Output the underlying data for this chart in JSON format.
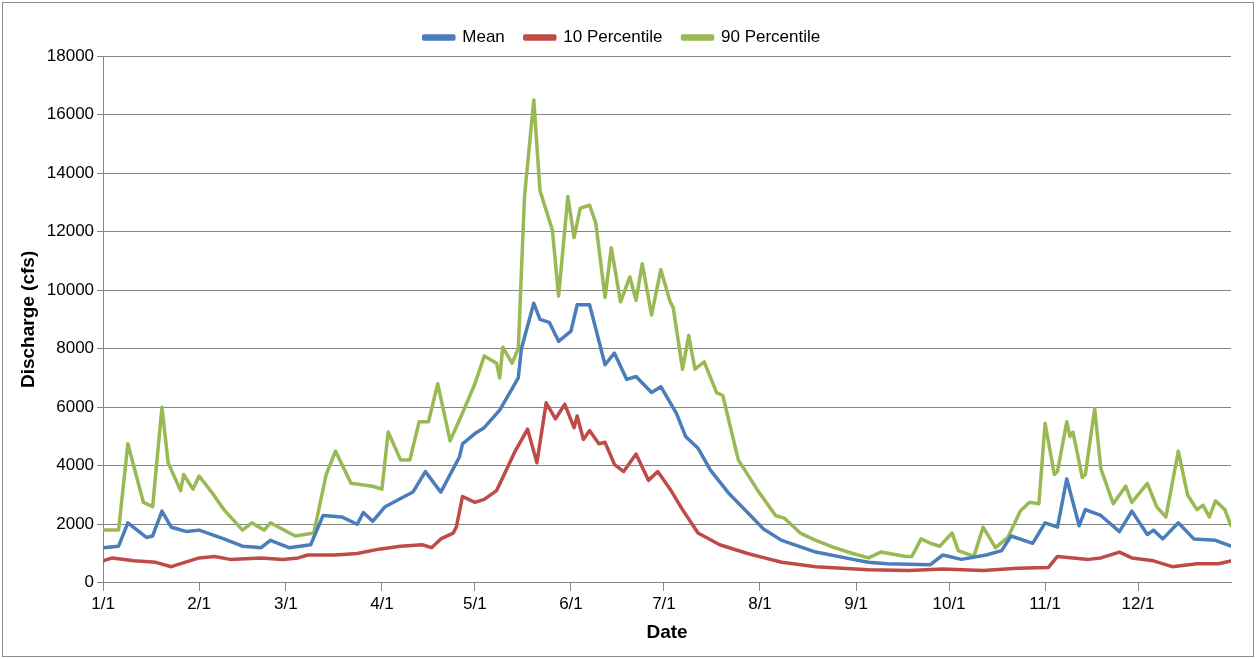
{
  "chart_data": {
    "type": "line",
    "xlabel": "Date",
    "ylabel": "Discharge (cfs)",
    "legend": "top",
    "grid": "y",
    "marker": "none",
    "line_style": "solid",
    "xlim": [
      "--01-01",
      "--12-31"
    ],
    "xticks": [
      {
        "value": "--01-01",
        "label": "1/1"
      },
      {
        "value": "--02-01",
        "label": "2/1"
      },
      {
        "value": "--03-01",
        "label": "3/1"
      },
      {
        "value": "--04-01",
        "label": "4/1"
      },
      {
        "value": "--05-01",
        "label": "5/1"
      },
      {
        "value": "--06-01",
        "label": "6/1"
      },
      {
        "value": "--07-01",
        "label": "7/1"
      },
      {
        "value": "--08-01",
        "label": "8/1"
      },
      {
        "value": "--09-01",
        "label": "9/1"
      },
      {
        "value": "--10-01",
        "label": "10/1"
      },
      {
        "value": "--11-01",
        "label": "11/1"
      },
      {
        "value": "--12-01",
        "label": "12/1"
      }
    ],
    "ylim": [
      0,
      18000
    ],
    "yticks": [
      0,
      2000,
      4000,
      6000,
      8000,
      10000,
      12000,
      14000,
      16000,
      18000
    ],
    "series": [
      {
        "name": "Mean",
        "color": "#4a7ebb",
        "x": [
          "--01-01",
          "--01-06",
          "--01-09",
          "--01-15",
          "--01-17",
          "--01-20",
          "--01-23",
          "--01-28",
          "--02-01",
          "--02-09",
          "--02-15",
          "--02-21",
          "--02-24",
          "--03-02",
          "--03-09",
          "--03-13",
          "--03-19",
          "--03-24",
          "--03-26",
          "--03-29",
          "--04-02",
          "--04-11",
          "--04-15",
          "--04-20",
          "--04-26",
          "--04-27",
          "--05-01",
          "--05-04",
          "--05-09",
          "--05-15",
          "--05-16",
          "--05-20",
          "--05-22",
          "--05-25",
          "--05-28",
          "--06-01",
          "--06-03",
          "--06-07",
          "--06-12",
          "--06-15",
          "--06-19",
          "--06-22",
          "--06-27",
          "--06-30",
          "--07-05",
          "--07-08",
          "--07-12",
          "--07-16",
          "--07-22",
          "--07-28",
          "--08-02",
          "--08-08",
          "--08-19",
          "--08-31",
          "--09-05",
          "--09-11",
          "--09-25",
          "--09-29",
          "--10-05",
          "--10-13",
          "--10-18",
          "--10-21",
          "--10-28",
          "--11-01",
          "--11-05",
          "--11-08",
          "--11-12",
          "--11-14",
          "--11-19",
          "--11-25",
          "--11-29",
          "--12-04",
          "--12-06",
          "--12-09",
          "--12-14",
          "--12-19",
          "--12-26",
          "--12-31"
        ],
        "values": [
          1200,
          1250,
          2050,
          1550,
          1600,
          2450,
          1900,
          1750,
          1800,
          1500,
          1250,
          1200,
          1450,
          1200,
          1300,
          2300,
          2250,
          2000,
          2400,
          2100,
          2600,
          3100,
          3800,
          3100,
          4300,
          4750,
          5100,
          5300,
          5900,
          7000,
          8000,
          9550,
          9000,
          8900,
          8250,
          8600,
          9500,
          9500,
          7450,
          7850,
          6950,
          7050,
          6500,
          6700,
          5800,
          5000,
          4600,
          3850,
          3050,
          2400,
          1850,
          1450,
          1050,
          800,
          700,
          650,
          620,
          950,
          800,
          950,
          1100,
          1600,
          1350,
          2050,
          1900,
          3550,
          1950,
          2500,
          2300,
          1750,
          2450,
          1650,
          1800,
          1500,
          2050,
          1500,
          1450,
          1250
        ]
      },
      {
        "name": "10 Percentile",
        "color": "#be4b48",
        "x": [
          "--01-01",
          "--01-04",
          "--01-11",
          "--01-18",
          "--01-23",
          "--02-01",
          "--02-06",
          "--02-11",
          "--02-21",
          "--02-28",
          "--03-05",
          "--03-08",
          "--03-17",
          "--03-24",
          "--03-31",
          "--04-07",
          "--04-14",
          "--04-17",
          "--04-20",
          "--04-24",
          "--04-25",
          "--04-27",
          "--05-01",
          "--05-04",
          "--05-08",
          "--05-14",
          "--05-18",
          "--05-21",
          "--05-24",
          "--05-27",
          "--05-30",
          "--06-02",
          "--06-03",
          "--06-05",
          "--06-07",
          "--06-10",
          "--06-12",
          "--06-15",
          "--06-18",
          "--06-22",
          "--06-26",
          "--06-29",
          "--07-03",
          "--07-07",
          "--07-12",
          "--07-19",
          "--07-28",
          "--08-08",
          "--08-19",
          "--09-05",
          "--09-18",
          "--09-29",
          "--10-12",
          "--10-23",
          "--11-02",
          "--11-05",
          "--11-10",
          "--11-15",
          "--11-19",
          "--11-25",
          "--11-29",
          "--12-06",
          "--12-12",
          "--12-20",
          "--12-27",
          "--12-31"
        ],
        "values": [
          750,
          850,
          750,
          700,
          550,
          850,
          900,
          800,
          850,
          800,
          850,
          950,
          950,
          1000,
          1150,
          1250,
          1300,
          1200,
          1500,
          1700,
          1900,
          2950,
          2750,
          2850,
          3150,
          4500,
          5250,
          4100,
          6150,
          5600,
          6100,
          5300,
          5700,
          4900,
          5200,
          4750,
          4800,
          4050,
          3800,
          4400,
          3500,
          3800,
          3200,
          2500,
          1700,
          1300,
          1000,
          700,
          550,
          450,
          420,
          470,
          420,
          500,
          520,
          900,
          850,
          800,
          850,
          1050,
          850,
          750,
          550,
          650,
          650,
          750
        ]
      },
      {
        "name": "90 Percentile",
        "color": "#98b954",
        "x": [
          "--01-01",
          "--01-06",
          "--01-09",
          "--01-14",
          "--01-17",
          "--01-20",
          "--01-22",
          "--01-26",
          "--01-27",
          "--01-30",
          "--02-01",
          "--02-05",
          "--02-09",
          "--02-15",
          "--02-18",
          "--02-22",
          "--02-24",
          "--03-04",
          "--03-10",
          "--03-14",
          "--03-17",
          "--03-22",
          "--03-29",
          "--04-01",
          "--04-03",
          "--04-07",
          "--04-10",
          "--04-13",
          "--04-16",
          "--04-19",
          "--04-23",
          "--04-27",
          "--05-01",
          "--05-04",
          "--05-08",
          "--05-09",
          "--05-10",
          "--05-13",
          "--05-15",
          "--05-17",
          "--05-20",
          "--05-22",
          "--05-26",
          "--05-28",
          "--05-31",
          "--06-02",
          "--06-04",
          "--06-07",
          "--06-09",
          "--06-12",
          "--06-14",
          "--06-17",
          "--06-20",
          "--06-22",
          "--06-24",
          "--06-27",
          "--06-30",
          "--07-03",
          "--07-04",
          "--07-07",
          "--07-09",
          "--07-11",
          "--07-14",
          "--07-18",
          "--07-20",
          "--07-25",
          "--07-31",
          "--08-06",
          "--08-09",
          "--08-14",
          "--08-19",
          "--08-25",
          "--08-31",
          "--09-05",
          "--09-09",
          "--09-17",
          "--09-19",
          "--09-22",
          "--09-25",
          "--09-28",
          "--10-02",
          "--10-04",
          "--10-09",
          "--10-12",
          "--10-16",
          "--10-20",
          "--10-24",
          "--10-27",
          "--10-30",
          "--11-01",
          "--11-04",
          "--11-05",
          "--11-08",
          "--11-09",
          "--11-10",
          "--11-13",
          "--11-14",
          "--11-17",
          "--11-19",
          "--11-23",
          "--11-27",
          "--11-29",
          "--12-04",
          "--12-07",
          "--12-10",
          "--12-14",
          "--12-17",
          "--12-20",
          "--12-22",
          "--12-24",
          "--12-26",
          "--12-29",
          "--12-31"
        ],
        "values": [
          1800,
          1800,
          4750,
          2750,
          2600,
          6000,
          4100,
          3150,
          3700,
          3200,
          3650,
          3100,
          2500,
          1800,
          2050,
          1800,
          2050,
          1600,
          1700,
          3700,
          4500,
          3400,
          3300,
          3200,
          5150,
          4200,
          4200,
          5500,
          5500,
          6800,
          4850,
          5800,
          6800,
          7750,
          7500,
          7000,
          8050,
          7500,
          8000,
          13200,
          16500,
          13400,
          12050,
          9800,
          13200,
          11800,
          12800,
          12900,
          12300,
          9750,
          11450,
          9600,
          10450,
          9650,
          10900,
          9150,
          10700,
          9600,
          9400,
          7300,
          8450,
          7300,
          7550,
          6500,
          6400,
          4200,
          3200,
          2300,
          2200,
          1700,
          1450,
          1200,
          1000,
          850,
          1050,
          900,
          900,
          1500,
          1350,
          1250,
          1700,
          1100,
          900,
          1900,
          1200,
          1550,
          2450,
          2750,
          2700,
          5450,
          3700,
          3800,
          5500,
          5000,
          5150,
          3600,
          3700,
          5950,
          3900,
          2700,
          3300,
          2750,
          3400,
          2600,
          2250,
          4500,
          3000,
          2500,
          2650,
          2250,
          2800,
          2500,
          1950
        ]
      }
    ]
  }
}
